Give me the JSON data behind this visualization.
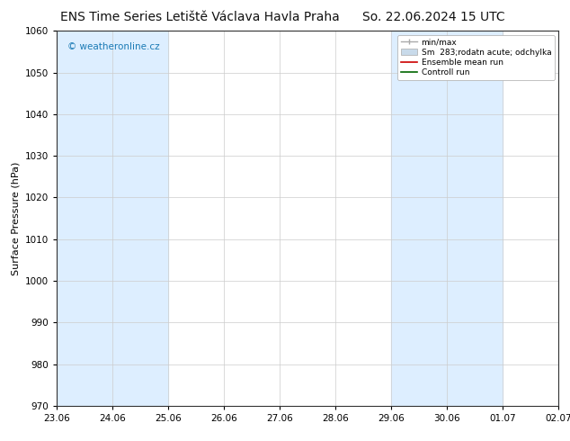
{
  "title_left": "ENS Time Series Letiště Václava Havla Praha",
  "title_right": "So. 22.06.2024 15 UTC",
  "ylabel": "Surface Pressure (hPa)",
  "ylim": [
    970,
    1060
  ],
  "yticks": [
    970,
    980,
    990,
    1000,
    1010,
    1020,
    1030,
    1040,
    1050,
    1060
  ],
  "xtick_labels": [
    "23.06",
    "24.06",
    "25.06",
    "26.06",
    "27.06",
    "28.06",
    "29.06",
    "30.06",
    "01.07",
    "02.07"
  ],
  "shaded_ranges": [
    [
      0.0,
      2.0
    ],
    [
      6.0,
      8.0
    ],
    [
      9.0,
      10.0
    ]
  ],
  "shade_color": "#ddeeff",
  "watermark": "© weatheronline.cz",
  "watermark_color": "#1a7ab5",
  "legend_entries": [
    {
      "label": "min/max",
      "color": "#aaaaaa",
      "style": "minmax"
    },
    {
      "label": "Sm  283;rodatn acute; odchylka",
      "color": "#c8d8ea",
      "style": "band"
    },
    {
      "label": "Ensemble mean run",
      "color": "#cc0000",
      "style": "line"
    },
    {
      "label": "Controll run",
      "color": "#006600",
      "style": "line"
    }
  ],
  "bg_color": "#ffffff",
  "plot_bg_color": "#ffffff",
  "grid_color": "#cccccc",
  "title_fontsize": 10,
  "axis_fontsize": 8,
  "tick_fontsize": 7.5
}
